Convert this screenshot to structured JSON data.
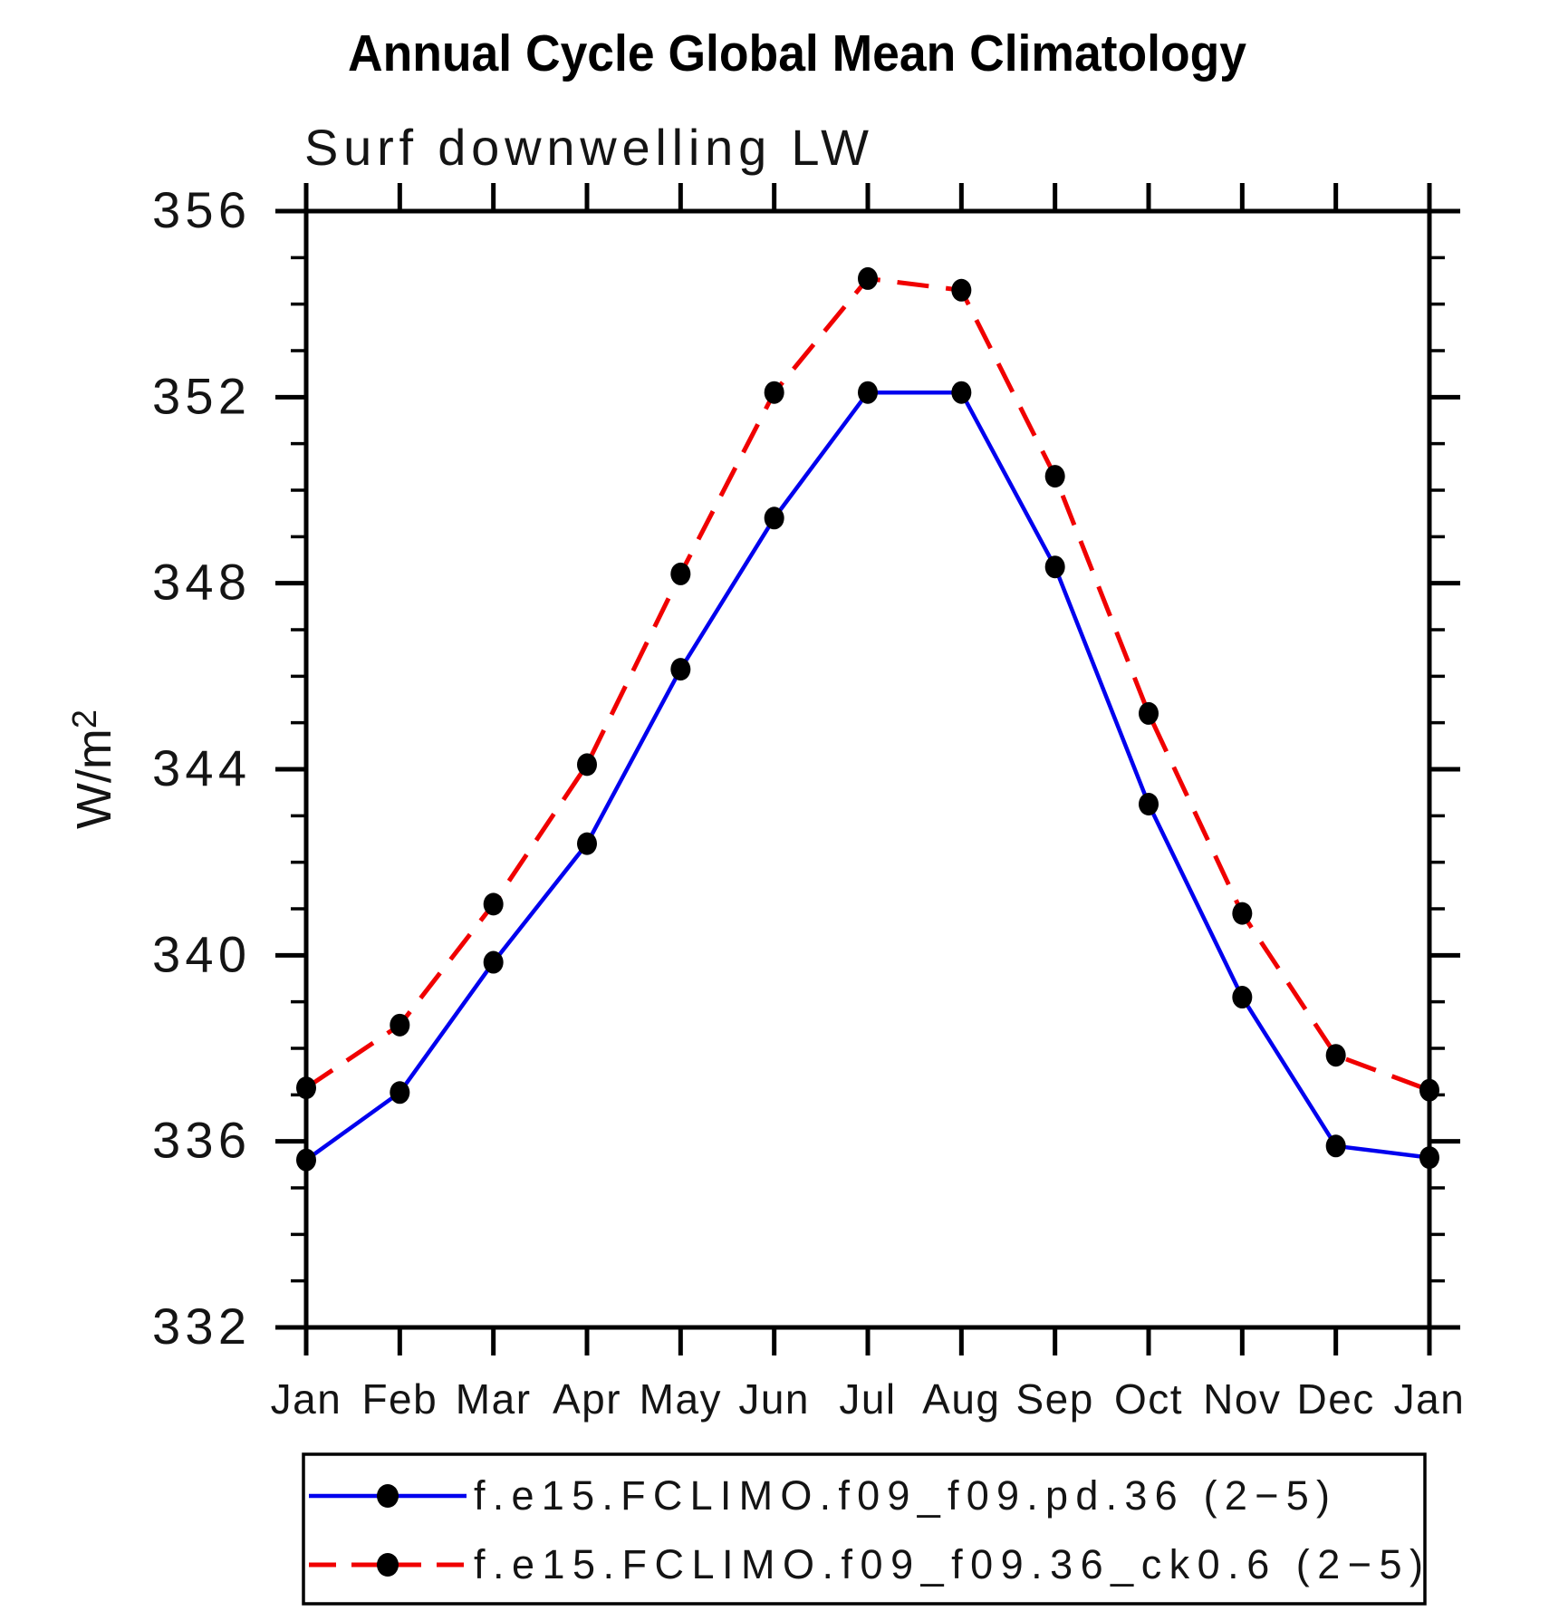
{
  "window": {
    "background": "#ffffff"
  },
  "header": {
    "title": "Annual Cycle Global Mean Climatology",
    "subtitle": "Surf downwelling LW"
  },
  "axes": {
    "y_label": "W/m²",
    "y_label_base": "W/m",
    "y_label_sup": "2",
    "y_min": 332,
    "y_max": 356,
    "y_major_step": 4,
    "y_minor_step": 1,
    "x_tick_labels": [
      "Jan",
      "Feb",
      "Mar",
      "Apr",
      "May",
      "Jun",
      "Jul",
      "Aug",
      "Sep",
      "Oct",
      "Nov",
      "Dec",
      "Jan"
    ]
  },
  "chart_data": {
    "type": "line",
    "title": "Annual Cycle Global Mean Climatology",
    "subtitle": "Surf downwelling LW",
    "xlabel": "",
    "ylabel": "W/m²",
    "ylim": [
      332,
      356
    ],
    "grid": false,
    "legend_position": "bottom-box",
    "categories": [
      "Jan",
      "Feb",
      "Mar",
      "Apr",
      "May",
      "Jun",
      "Jul",
      "Aug",
      "Sep",
      "Oct",
      "Nov",
      "Dec",
      "Jan"
    ],
    "marker": "filled-black-dot",
    "marker_color": "#000000",
    "series": [
      {
        "name": "f.e15.FCLIMO.f09_f09.pd.36 (2−5)",
        "color": "#0000ee",
        "line_style": "solid",
        "values": [
          335.6,
          337.05,
          339.85,
          342.4,
          346.15,
          349.4,
          352.1,
          352.1,
          348.35,
          343.25,
          339.1,
          335.9,
          335.65
        ]
      },
      {
        "name": "f.e15.FCLIMO.f09_f09.36_ck0.6 (2−5)",
        "color": "#f00000",
        "line_style": "dashed",
        "values": [
          337.15,
          338.5,
          341.1,
          344.1,
          348.2,
          352.1,
          354.55,
          354.3,
          350.3,
          345.2,
          340.9,
          337.85,
          337.1
        ]
      }
    ]
  }
}
